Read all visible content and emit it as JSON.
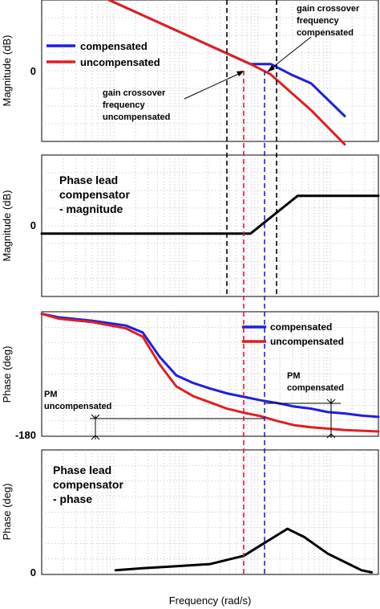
{
  "colors": {
    "compensated": "#1f1fe0",
    "uncompensated": "#e01f1f",
    "lead": "#000000",
    "grid": "#b0b0b0"
  },
  "figure": {
    "xlabel": "Frequency  (rad/s)"
  },
  "chart_data": [
    {
      "type": "line",
      "panel": "magnitude",
      "ylabel": "Magnitude (dB)",
      "ytick_labels": [
        "0"
      ],
      "xlim": [
        0,
        100
      ],
      "ylim": [
        -45,
        50
      ],
      "grid": true,
      "legend": {
        "placement": "left",
        "entries": [
          "compensated",
          "uncompensated"
        ]
      },
      "series": [
        {
          "name": "compensated",
          "x": [
            20,
            62,
            68,
            74,
            80,
            90
          ],
          "y": [
            50,
            7,
            7,
            0,
            -6,
            -28
          ]
        },
        {
          "name": "uncompensated",
          "x": [
            20,
            62,
            68,
            74,
            80,
            90
          ],
          "y": [
            50,
            7,
            0,
            -12,
            -24,
            -47
          ]
        }
      ],
      "annotations": [
        "gain crossover frequency compensated",
        "gain crossover frequency uncompensated"
      ]
    },
    {
      "type": "line",
      "panel": "lead-magnitude",
      "ylabel": "Magnitude (dB)",
      "ytick_labels": [
        "0"
      ],
      "xlim": [
        0,
        100
      ],
      "ylim": [
        -20,
        25
      ],
      "grid": true,
      "series": [
        {
          "name": "lead",
          "x": [
            0,
            62,
            76,
            100
          ],
          "y": [
            0,
            0,
            12,
            12
          ]
        }
      ],
      "annotations": [
        "Phase lead compensator - magnitude"
      ]
    },
    {
      "type": "line",
      "panel": "phase",
      "ylabel": "Phase (deg)",
      "ytick_labels": [
        "-180"
      ],
      "xlim": [
        0,
        100
      ],
      "ylim": [
        -180,
        0
      ],
      "grid": true,
      "legend": {
        "placement": "top-right",
        "entries": [
          "compensated",
          "uncompensated"
        ]
      },
      "series": [
        {
          "name": "compensated",
          "x": [
            0,
            5,
            15,
            25,
            30,
            35,
            40,
            45,
            50,
            55,
            60,
            65,
            70,
            75,
            80,
            85,
            90,
            95,
            100
          ],
          "y": [
            -3,
            -8,
            -13,
            -20,
            -30,
            -65,
            -92,
            -103,
            -111,
            -118,
            -123,
            -128,
            -132,
            -137,
            -140,
            -145,
            -147,
            -150,
            -152
          ]
        },
        {
          "name": "uncompensated",
          "x": [
            0,
            5,
            15,
            25,
            30,
            35,
            40,
            45,
            50,
            55,
            60,
            65,
            70,
            75,
            80,
            85,
            90,
            95,
            100
          ],
          "y": [
            -3,
            -10,
            -15,
            -24,
            -36,
            -76,
            -108,
            -122,
            -131,
            -140,
            -146,
            -151,
            -158,
            -164,
            -167,
            -169,
            -171,
            -172,
            -173
          ]
        }
      ],
      "annotations": [
        "PM compensated",
        "PM uncompensated"
      ]
    },
    {
      "type": "line",
      "panel": "lead-phase",
      "ylabel": "Phase (deg)",
      "ytick_labels": [
        "0"
      ],
      "xlim": [
        0,
        100
      ],
      "ylim": [
        0,
        60
      ],
      "grid": true,
      "series": [
        {
          "name": "lead",
          "x": [
            22,
            30,
            40,
            50,
            60,
            65,
            70,
            73,
            78,
            85,
            90,
            95,
            98
          ],
          "y": [
            2,
            3,
            4,
            5,
            9,
            14,
            19,
            22,
            18,
            10,
            6,
            2,
            1
          ]
        }
      ],
      "annotations": [
        "Phase lead compensator - phase"
      ]
    }
  ]
}
